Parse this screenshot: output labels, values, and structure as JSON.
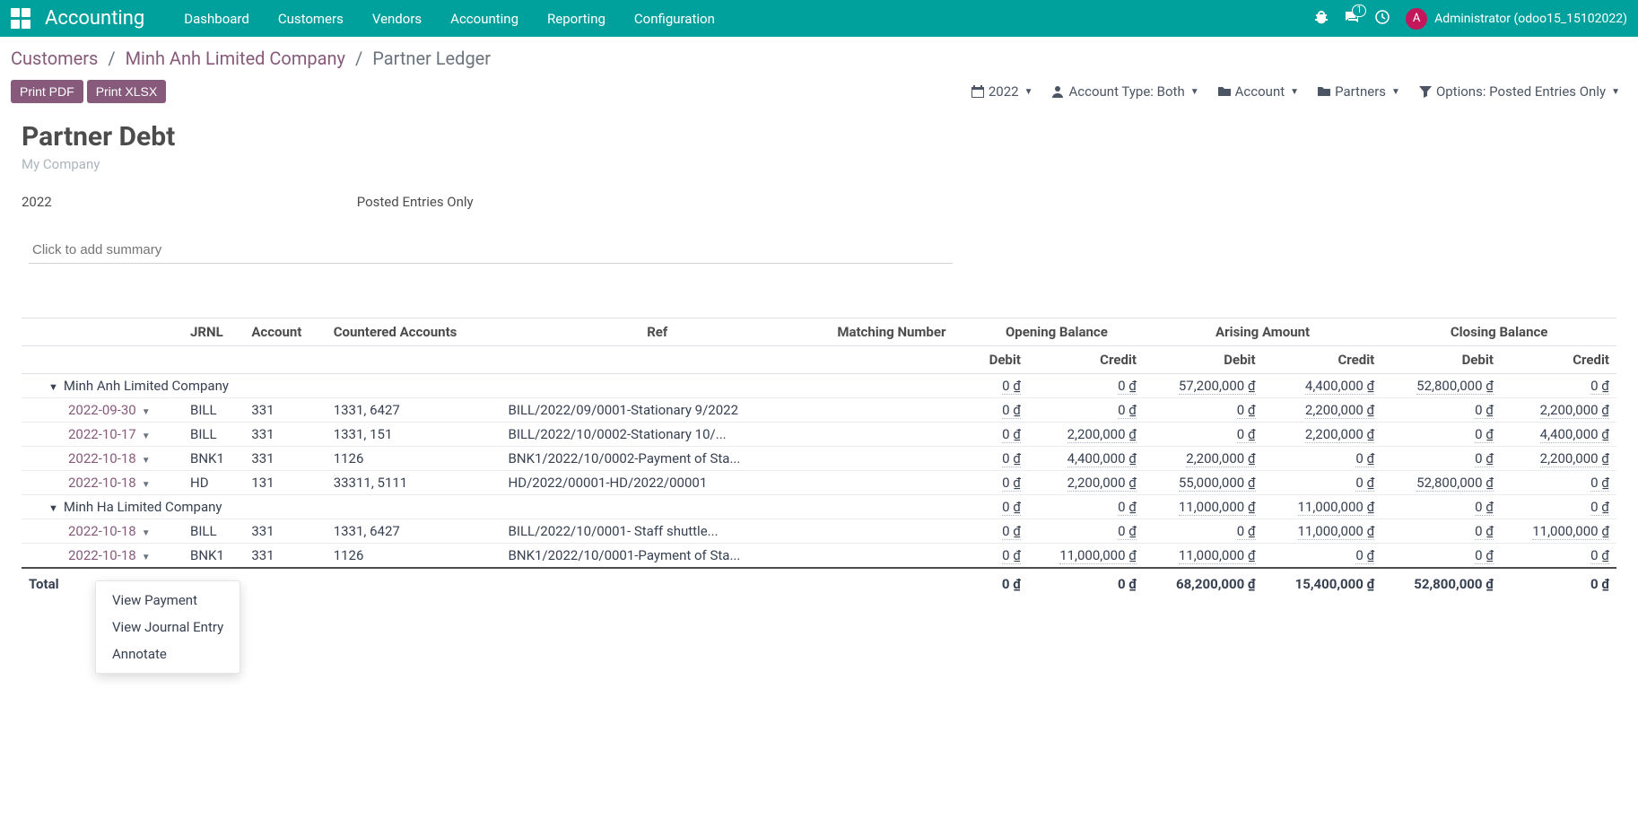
{
  "navbar": {
    "app_title": "Accounting",
    "links": [
      "Dashboard",
      "Customers",
      "Vendors",
      "Accounting",
      "Reporting",
      "Configuration"
    ],
    "message_count": "1",
    "avatar_letter": "A",
    "user_name": "Administrator (odoo15_15102022)"
  },
  "breadcrumb": {
    "items": [
      "Customers",
      "Minh Anh Limited Company"
    ],
    "current": "Partner Ledger"
  },
  "toolbar": {
    "print_pdf": "Print PDF",
    "print_xlsx": "Print XLSX"
  },
  "filters": {
    "year": "2022",
    "account_type": "Account Type: Both",
    "account": "Account",
    "partners": "Partners",
    "options": "Options: Posted Entries Only"
  },
  "report": {
    "title": "Partner Debt",
    "company": "My Company",
    "year": "2022",
    "posted": "Posted Entries Only",
    "summary_placeholder": "Click to add summary"
  },
  "table": {
    "headers": {
      "jrnl": "JRNL",
      "account": "Account",
      "countered": "Countered Accounts",
      "ref": "Ref",
      "matching": "Matching Number",
      "opening": "Opening Balance",
      "arising": "Arising Amount",
      "closing": "Closing Balance",
      "debit": "Debit",
      "credit": "Credit"
    },
    "groups": [
      {
        "label": "Minh Anh Limited Company",
        "totals": [
          "0 ₫",
          "0 ₫",
          "57,200,000 ₫",
          "4,400,000 ₫",
          "52,800,000 ₫",
          "0 ₫"
        ],
        "rows": [
          {
            "date": "2022-09-30",
            "jrnl": "BILL",
            "account": "331",
            "countered": "1331, 6427",
            "ref": "BILL/2022/09/0001-Stationary 9/2022",
            "vals": [
              "0 ₫",
              "0 ₫",
              "0 ₫",
              "2,200,000 ₫",
              "0 ₫",
              "2,200,000 ₫"
            ]
          },
          {
            "date": "2022-10-17",
            "jrnl": "BILL",
            "account": "331",
            "countered": "1331, 151",
            "ref": "BILL/2022/10/0002-Stationary 10/...",
            "vals": [
              "0 ₫",
              "2,200,000 ₫",
              "0 ₫",
              "2,200,000 ₫",
              "0 ₫",
              "4,400,000 ₫"
            ]
          },
          {
            "date": "2022-10-18",
            "jrnl": "BNK1",
            "account": "331",
            "countered": "1126",
            "ref": "BNK1/2022/10/0002-Payment of Sta...",
            "vals": [
              "0 ₫",
              "4,400,000 ₫",
              "2,200,000 ₫",
              "0 ₫",
              "0 ₫",
              "2,200,000 ₫"
            ]
          },
          {
            "date": "2022-10-18",
            "jrnl": "HD",
            "account": "131",
            "countered": "33311, 5111",
            "ref": "HD/2022/00001-HD/2022/00001",
            "vals": [
              "0 ₫",
              "2,200,000 ₫",
              "55,000,000 ₫",
              "0 ₫",
              "52,800,000 ₫",
              "0 ₫"
            ]
          }
        ]
      },
      {
        "label": "Minh Ha Limited Company",
        "totals": [
          "0 ₫",
          "0 ₫",
          "11,000,000 ₫",
          "11,000,000 ₫",
          "0 ₫",
          "0 ₫"
        ],
        "rows": [
          {
            "date": "2022-10-18",
            "jrnl": "BILL",
            "account": "331",
            "countered": "1331, 6427",
            "ref": "BILL/2022/10/0001- Staff shuttle...",
            "vals": [
              "0 ₫",
              "0 ₫",
              "0 ₫",
              "11,000,000 ₫",
              "0 ₫",
              "11,000,000 ₫"
            ]
          },
          {
            "date": "2022-10-18",
            "jrnl": "BNK1",
            "account": "331",
            "countered": "1126",
            "ref": "BNK1/2022/10/0001-Payment of Sta...",
            "vals": [
              "0 ₫",
              "11,000,000 ₫",
              "11,000,000 ₫",
              "0 ₫",
              "0 ₫",
              "0 ₫"
            ]
          }
        ]
      }
    ],
    "total_label": "Total",
    "total_vals": [
      "0 ₫",
      "0 ₫",
      "68,200,000 ₫",
      "15,400,000 ₫",
      "52,800,000 ₫",
      "0 ₫"
    ]
  },
  "dropdown": {
    "items": [
      "View Payment",
      "View Journal Entry",
      "Annotate"
    ]
  }
}
